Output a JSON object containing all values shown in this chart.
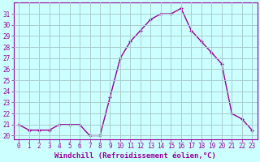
{
  "x": [
    0,
    1,
    2,
    3,
    4,
    5,
    6,
    7,
    8,
    9,
    10,
    11,
    12,
    13,
    14,
    15,
    16,
    17,
    18,
    19,
    20,
    21,
    22,
    23
  ],
  "y": [
    21,
    20.5,
    20.5,
    20.5,
    21,
    21,
    21,
    20,
    20,
    23.5,
    27,
    28.5,
    29.5,
    30.5,
    31,
    31,
    31.5,
    29.5,
    28.5,
    27.5,
    26.5,
    22,
    21.5,
    20.5
  ],
  "line_color": "#990099",
  "marker": "+",
  "marker_size": 3,
  "marker_lw": 1.0,
  "line_width": 1.0,
  "bg_color": "#ccffff",
  "grid_color": "#aacccc",
  "xlabel": "Windchill (Refroidissement éolien,°C)",
  "ylim_min": 19.7,
  "ylim_max": 32.0,
  "xlim_min": -0.5,
  "xlim_max": 23.5,
  "yticks": [
    20,
    21,
    22,
    23,
    24,
    25,
    26,
    27,
    28,
    29,
    30,
    31
  ],
  "xticks": [
    0,
    1,
    2,
    3,
    4,
    5,
    6,
    7,
    8,
    9,
    10,
    11,
    12,
    13,
    14,
    15,
    16,
    17,
    18,
    19,
    20,
    21,
    22,
    23
  ],
  "tick_fontsize": 5.5,
  "xlabel_fontsize": 6.5,
  "tick_color": "#990099",
  "spine_color": "#990099"
}
